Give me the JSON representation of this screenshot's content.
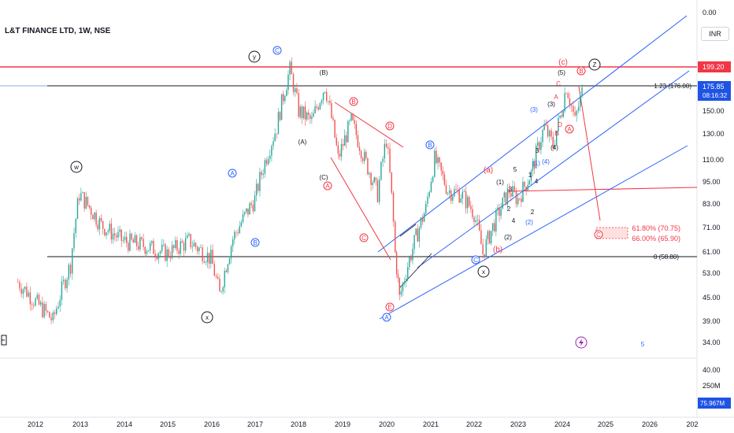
{
  "header": {
    "title": "L&T FINANCE LTD, 1W, NSE",
    "scale_label": "INR"
  },
  "price_axis": {
    "ticks": [
      "0.00",
      "150.00",
      "130.00",
      "110.00",
      "95.00",
      "83.00",
      "71.00",
      "61.00",
      "53.00",
      "45.00",
      "39.00",
      "34.00",
      "40.00",
      "250M"
    ],
    "current_price": "175.85",
    "countdown": "08:16:32",
    "resistance_tag": "199.20",
    "volume_tag": "75.967M"
  },
  "time_axis": {
    "labels": [
      "2012",
      "2013",
      "2014",
      "2015",
      "2016",
      "2017",
      "2018",
      "2019",
      "2020",
      "2021",
      "2022",
      "2023",
      "2024",
      "2025",
      "2026",
      "202"
    ]
  },
  "levels": {
    "fib_top": "1.23 (176.00)",
    "fib_bottom": "0 (58.80)",
    "target_1": "61.80% (70.75)",
    "target_2": "66.00% (65.90)"
  },
  "wave_labels": {
    "w": "w",
    "x1": "x",
    "y": "y",
    "x2": "x",
    "z": "Z",
    "A": "A",
    "B": "B",
    "C": "C",
    "D": "D",
    "E": "E",
    "pA": "(A)",
    "pB": "(B)",
    "pC": "(C)",
    "a": "(a)",
    "b": "(b)",
    "c": "(c)",
    "n1": "1",
    "n2": "2",
    "n3": "3",
    "n4": "4",
    "n5": "5",
    "p1": "(1)",
    "p2": "(2)",
    "p3": "(3)",
    "p4": "(4)",
    "p5": "(5)"
  },
  "colors": {
    "up": "#26a69a",
    "down": "#ef5350",
    "blue": "#2962ff",
    "red": "#f23645",
    "black": "#131722"
  },
  "chart_data": {
    "type": "line",
    "title": "L&T FINANCE LTD, 1W, NSE",
    "x": [
      2011.6,
      2012.0,
      2012.4,
      2012.8,
      2013.0,
      2013.5,
      2014.0,
      2014.5,
      2015.0,
      2015.5,
      2016.0,
      2016.2,
      2016.5,
      2017.0,
      2017.5,
      2017.8,
      2018.0,
      2018.3,
      2018.6,
      2018.9,
      2019.2,
      2019.5,
      2019.8,
      2020.0,
      2020.2,
      2020.3,
      2020.6,
      2020.9,
      2021.1,
      2021.4,
      2021.7,
      2022.0,
      2022.2,
      2022.5,
      2022.8,
      2023.0,
      2023.3,
      2023.6,
      2023.8,
      2024.0,
      2024.1,
      2024.3,
      2024.5
    ],
    "y": [
      50,
      44,
      39,
      56,
      88,
      72,
      65,
      63,
      60,
      65,
      58,
      46,
      66,
      85,
      135,
      195,
      150,
      140,
      176,
      110,
      140,
      110,
      88,
      125,
      60,
      45,
      62,
      80,
      110,
      90,
      88,
      78,
      60,
      75,
      90,
      85,
      100,
      135,
      120,
      150,
      176,
      140,
      176
    ],
    "ylim": [
      34,
      200
    ],
    "yscale": "log",
    "volume": "75.967M",
    "grid": false
  }
}
